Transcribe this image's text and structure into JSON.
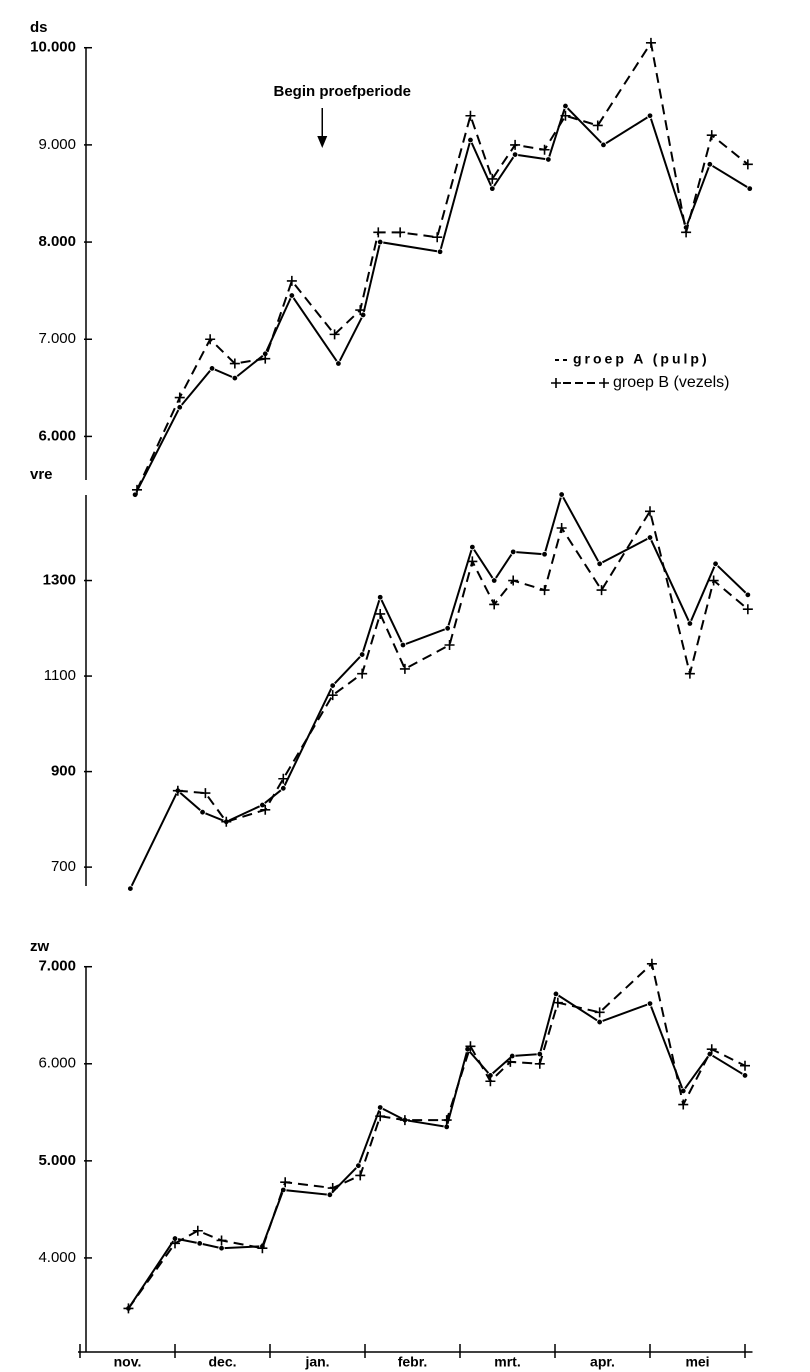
{
  "chart_data": [
    {
      "type": "line",
      "ylabel": "ds",
      "annotation": "Begin proefperiode",
      "annotation_x": 2.55,
      "legend": "right",
      "xlim": [
        0,
        7.1
      ],
      "ylim": [
        5500,
        10100
      ],
      "yticks": [
        {
          "value": 10000,
          "label": "10.000"
        },
        {
          "value": 9000,
          "label": "9.000"
        },
        {
          "value": 8000,
          "label": "8.000"
        },
        {
          "value": 7000,
          "label": "7.000"
        },
        {
          "value": 6000,
          "label": "6.000"
        }
      ],
      "series": [
        {
          "name": "groep A (pulp)",
          "color": "#000000",
          "style": "solid",
          "marker": "dot",
          "x": [
            0.58,
            1.05,
            1.39,
            1.63,
            1.95,
            2.23,
            2.72,
            2.98,
            3.16,
            3.79,
            4.11,
            4.34,
            4.58,
            4.93,
            5.11,
            5.51,
            6.0,
            6.38,
            6.63,
            7.05
          ],
          "values": [
            5400,
            6300,
            6700,
            6600,
            6850,
            7450,
            6750,
            7250,
            8000,
            7900,
            9050,
            8550,
            8900,
            8850,
            9400,
            9000,
            9300,
            8150,
            8800,
            8550
          ]
        },
        {
          "name": "groep B (vezels)",
          "color": "#000000",
          "style": "dashed",
          "marker": "plus",
          "x": [
            0.6,
            1.05,
            1.37,
            1.63,
            1.95,
            2.23,
            2.68,
            2.95,
            3.14,
            3.37,
            3.76,
            4.11,
            4.34,
            4.58,
            4.89,
            5.11,
            5.45,
            6.01,
            6.38,
            6.65,
            7.03
          ],
          "values": [
            5450,
            6400,
            7000,
            6750,
            6800,
            7600,
            7050,
            7300,
            8100,
            8100,
            8050,
            9300,
            8650,
            9000,
            8950,
            9300,
            9200,
            10050,
            8100,
            9100,
            8800
          ]
        }
      ]
    },
    {
      "type": "line",
      "ylabel": "vre",
      "xlim": [
        0,
        7.1
      ],
      "ylim": [
        650,
        1500
      ],
      "yticks": [
        1300,
        1100,
        900,
        700
      ],
      "series": [
        {
          "name": "groep A (pulp)",
          "color": "#000000",
          "style": "solid",
          "marker": "dot",
          "x": [
            0.53,
            1.03,
            1.29,
            1.54,
            1.92,
            2.14,
            2.66,
            2.97,
            3.16,
            3.4,
            3.87,
            4.13,
            4.36,
            4.56,
            4.89,
            5.07,
            5.47,
            6.0,
            6.42,
            6.69,
            7.03
          ],
          "values": [
            655,
            860,
            815,
            795,
            830,
            865,
            1080,
            1145,
            1265,
            1165,
            1200,
            1370,
            1300,
            1360,
            1355,
            1480,
            1335,
            1390,
            1210,
            1335,
            1270
          ]
        },
        {
          "name": "groep B (vezels)",
          "color": "#000000",
          "style": "dashed",
          "marker": "plus",
          "x": [
            1.03,
            1.32,
            1.54,
            1.95,
            2.14,
            2.66,
            2.97,
            3.16,
            3.42,
            3.89,
            4.13,
            4.36,
            4.56,
            4.89,
            5.07,
            5.49,
            6.0,
            6.42,
            6.67,
            7.03
          ],
          "values": [
            860,
            855,
            795,
            820,
            885,
            1060,
            1105,
            1230,
            1115,
            1165,
            1340,
            1250,
            1300,
            1280,
            1410,
            1280,
            1445,
            1105,
            1300,
            1240
          ]
        }
      ]
    },
    {
      "type": "line",
      "ylabel": "zw",
      "xlim": [
        0,
        7.1
      ],
      "ylim": [
        3000,
        7100
      ],
      "yticks": [
        {
          "value": 7000,
          "label": "7.000"
        },
        {
          "value": 6000,
          "label": "6.000"
        },
        {
          "value": 5000,
          "label": "5.000"
        },
        {
          "value": 4000,
          "label": "4.000"
        }
      ],
      "categories": [
        "nov.",
        "dec.",
        "jan.",
        "febr.",
        "mrt.",
        "apr.",
        "mei"
      ],
      "xticks": [
        0,
        1,
        2,
        3,
        4,
        5,
        6,
        7
      ],
      "series": [
        {
          "name": "groep A (pulp)",
          "color": "#000000",
          "style": "solid",
          "marker": "dot",
          "x": [
            0.51,
            1.0,
            1.26,
            1.49,
            1.92,
            2.14,
            2.63,
            2.93,
            3.16,
            3.42,
            3.86,
            4.08,
            4.32,
            4.55,
            4.84,
            5.01,
            5.47,
            6.0,
            6.35,
            6.63,
            7.0
          ],
          "values": [
            3480,
            4200,
            4150,
            4100,
            4120,
            4700,
            4650,
            4950,
            5550,
            5420,
            5350,
            6150,
            5880,
            6080,
            6100,
            6720,
            6430,
            6620,
            5720,
            6100,
            5880
          ]
        },
        {
          "name": "groep B (vezels)",
          "color": "#000000",
          "style": "dashed",
          "marker": "plus",
          "x": [
            0.51,
            1.0,
            1.24,
            1.49,
            1.92,
            2.16,
            2.66,
            2.95,
            3.16,
            3.42,
            3.86,
            4.11,
            4.32,
            4.53,
            4.84,
            5.03,
            5.47,
            6.02,
            6.35,
            6.65,
            7.0
          ],
          "values": [
            3480,
            4150,
            4280,
            4180,
            4100,
            4780,
            4720,
            4850,
            5460,
            5420,
            5420,
            6180,
            5820,
            6020,
            6000,
            6630,
            6530,
            7030,
            5580,
            6150,
            5980
          ]
        }
      ]
    }
  ]
}
